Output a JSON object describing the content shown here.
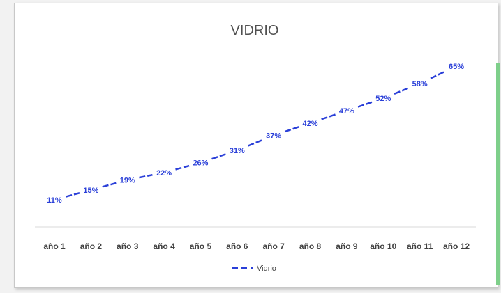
{
  "chart_data": {
    "type": "line",
    "title": "VIDRIO",
    "categories": [
      "año 1",
      "año 2",
      "año 3",
      "año 4",
      "año 5",
      "año 6",
      "año 7",
      "año 8",
      "año 9",
      "año 10",
      "año 11",
      "año 12"
    ],
    "series": [
      {
        "name": "Vidrio",
        "values": [
          11,
          15,
          19,
          22,
          26,
          31,
          37,
          42,
          47,
          52,
          58,
          65
        ],
        "labels": [
          "11%",
          "15%",
          "19%",
          "22%",
          "26%",
          "31%",
          "37%",
          "42%",
          "47%",
          "52%",
          "58%",
          "65%"
        ],
        "color": "#2a3fd8",
        "dashed": true
      }
    ],
    "ylim": [
      0,
      80
    ],
    "grid": false,
    "legend": "bottom"
  },
  "colors": {
    "series": "#2a3fd8",
    "accent": "#7ecf8a"
  }
}
